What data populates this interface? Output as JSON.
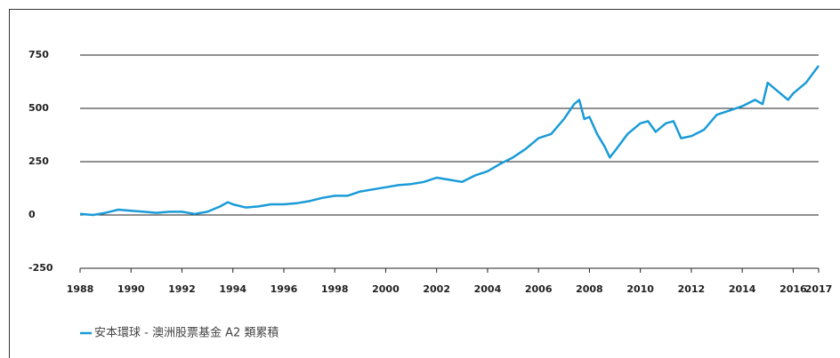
{
  "chart_data": {
    "type": "line",
    "x": [
      1988,
      1988.5,
      1989,
      1989.5,
      1990,
      1990.5,
      1991,
      1991.5,
      1992,
      1992.5,
      1993,
      1993.5,
      1993.8,
      1994,
      1994.5,
      1995,
      1995.5,
      1996,
      1996.5,
      1997,
      1997.5,
      1998,
      1998.5,
      1999,
      1999.5,
      2000,
      2000.5,
      2001,
      2001.5,
      2002,
      2002.5,
      2003,
      2003.5,
      2004,
      2004.5,
      2005,
      2005.5,
      2006,
      2006.5,
      2007,
      2007.4,
      2007.6,
      2007.8,
      2008,
      2008.3,
      2008.6,
      2008.8,
      2009,
      2009.5,
      2010,
      2010.3,
      2010.6,
      2011,
      2011.3,
      2011.6,
      2012,
      2012.5,
      2013,
      2013.5,
      2014,
      2014.5,
      2014.8,
      2015,
      2015.3,
      2015.8,
      2016,
      2016.5,
      2017
    ],
    "series": [
      {
        "name": "安本環球 - 澳洲股票基金 A2 類累積",
        "color": "#1a9bd7",
        "values": [
          5,
          0,
          10,
          25,
          20,
          15,
          10,
          15,
          15,
          5,
          15,
          40,
          60,
          50,
          35,
          40,
          50,
          50,
          55,
          65,
          80,
          90,
          90,
          110,
          120,
          130,
          140,
          145,
          155,
          175,
          165,
          155,
          185,
          205,
          240,
          270,
          310,
          360,
          380,
          450,
          520,
          540,
          450,
          460,
          380,
          320,
          270,
          300,
          380,
          430,
          440,
          390,
          430,
          440,
          360,
          370,
          400,
          470,
          490,
          510,
          540,
          520,
          620,
          590,
          540,
          570,
          620,
          700
        ]
      }
    ],
    "xlim": [
      1988,
      2017
    ],
    "xticks": [
      1988,
      1990,
      1992,
      1994,
      1996,
      1998,
      2000,
      2002,
      2004,
      2006,
      2008,
      2010,
      2012,
      2014,
      2016,
      2017
    ],
    "ylim": [
      -250,
      750
    ],
    "yticks": [
      -250,
      0,
      250,
      500,
      750
    ],
    "grid": true
  }
}
